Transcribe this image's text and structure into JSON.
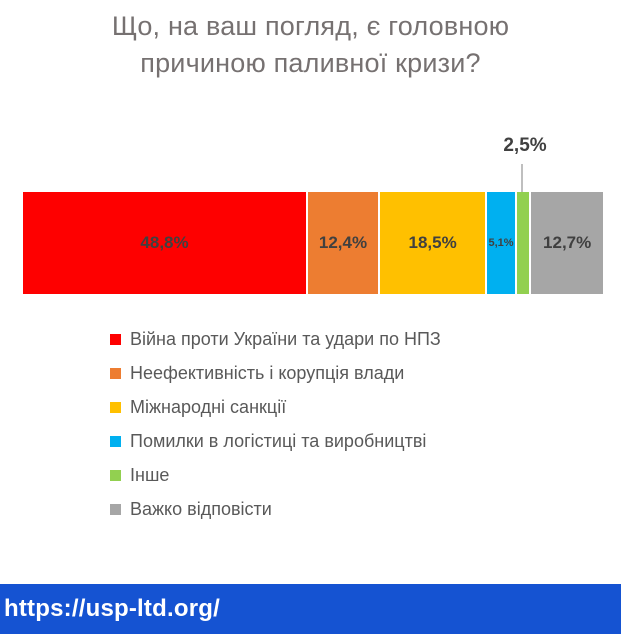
{
  "title": "Що, на ваш погляд, є головною причиною паливної кризи?",
  "chart_data": {
    "type": "bar",
    "subtype": "stacked-horizontal-100-percent",
    "title": "Що, на ваш погляд, є головною причиною паливної кризи?",
    "unit": "%",
    "axis": "none",
    "grid": false,
    "legend_position": "bottom-left",
    "categories": [
      "Війна проти України та удари по НПЗ",
      "Неефективність і корупція влади",
      "Міжнародні санкції",
      "Помилки в логістиці та виробництві",
      "Інше",
      "Важко відповісти"
    ],
    "values": [
      48.8,
      12.4,
      18.5,
      5.1,
      2.5,
      12.7
    ],
    "segments": [
      {
        "name": "Війна проти України та удари по НПЗ",
        "value": 48.8,
        "label": "48,8%",
        "color": "#fe0000"
      },
      {
        "name": "Неефективність і корупція влади",
        "value": 12.4,
        "label": "12,4%",
        "color": "#ed7d31"
      },
      {
        "name": "Міжнародні санкції",
        "value": 18.5,
        "label": "18,5%",
        "color": "#ffc000"
      },
      {
        "name": "Помилки в логістиці та виробництві",
        "value": 5.1,
        "label": "5,1%",
        "color": "#00b0f0"
      },
      {
        "name": "Інше",
        "value": 2.5,
        "label": "2,5%",
        "color": "#92d050"
      },
      {
        "name": "Важко відповісти",
        "value": 12.7,
        "label": "12,7%",
        "color": "#a6a6a6"
      }
    ],
    "callout": {
      "segment": "Інше",
      "label": "2,5%"
    }
  },
  "colors": {
    "title_text": "#767171",
    "bar_label_text": "#404040",
    "legend_text": "#595959",
    "leader_line": "#bfbfbf",
    "background": "#ffffff"
  },
  "footer": {
    "url": "https://usp-ltd.org/",
    "background": "#1553d2"
  }
}
